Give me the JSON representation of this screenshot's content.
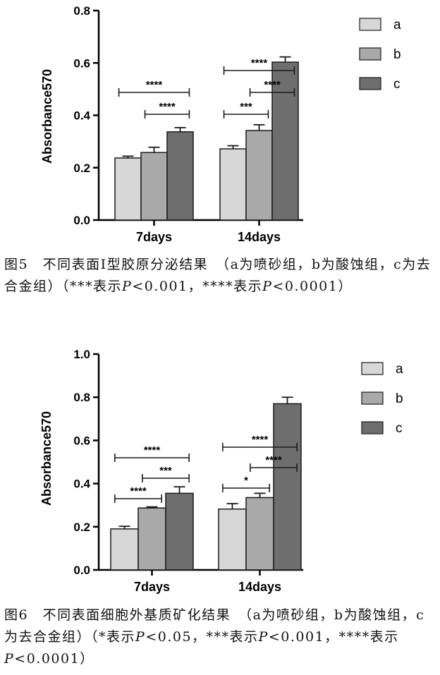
{
  "chart_data": [
    {
      "type": "bar",
      "categories": [
        "7days",
        "14days"
      ],
      "ylabel": "Absorbance570",
      "xlabel": "",
      "ylim": [
        0,
        0.8
      ],
      "yticks": [
        "0.0",
        "0.2",
        "0.4",
        "0.6",
        "0.8"
      ],
      "series": [
        {
          "name": "a",
          "values": [
            0.237,
            0.272
          ],
          "errors": [
            0.007,
            0.012
          ],
          "color": "#d7d7d7"
        },
        {
          "name": "b",
          "values": [
            0.258,
            0.342
          ],
          "errors": [
            0.02,
            0.022
          ],
          "color": "#a9a9a9"
        },
        {
          "name": "c",
          "values": [
            0.337,
            0.603
          ],
          "errors": [
            0.016,
            0.02
          ],
          "color": "#6e6e6e"
        }
      ],
      "significance": [
        {
          "group": 0,
          "from": 0,
          "to": 2,
          "label": "****",
          "level": 2
        },
        {
          "group": 0,
          "from": 1,
          "to": 2,
          "label": "****",
          "level": 1
        },
        {
          "group": 1,
          "from": 0,
          "to": 1,
          "label": "***",
          "level": 1
        },
        {
          "group": 1,
          "from": 0,
          "to": 2,
          "label": "****",
          "level": 3
        },
        {
          "group": 1,
          "from": 1,
          "to": 2,
          "label": "****",
          "level": 2
        }
      ],
      "legend_position": "top-right"
    },
    {
      "type": "bar",
      "categories": [
        "7days",
        "14days"
      ],
      "ylabel": "Absorbance570",
      "xlabel": "",
      "ylim": [
        0,
        1.0
      ],
      "yticks": [
        "0.0",
        "0.2",
        "0.4",
        "0.6",
        "0.8",
        "1.0"
      ],
      "series": [
        {
          "name": "a",
          "values": [
            0.19,
            0.282
          ],
          "errors": [
            0.012,
            0.025
          ],
          "color": "#d7d7d7"
        },
        {
          "name": "b",
          "values": [
            0.287,
            0.335
          ],
          "errors": [
            0.005,
            0.02
          ],
          "color": "#a9a9a9"
        },
        {
          "name": "c",
          "values": [
            0.355,
            0.77
          ],
          "errors": [
            0.03,
            0.03
          ],
          "color": "#6e6e6e"
        }
      ],
      "significance": [
        {
          "group": 0,
          "from": 0,
          "to": 1,
          "label": "****",
          "level": 1
        },
        {
          "group": 0,
          "from": 1,
          "to": 2,
          "label": "***",
          "level": 2
        },
        {
          "group": 0,
          "from": 0,
          "to": 2,
          "label": "****",
          "level": 3
        },
        {
          "group": 1,
          "from": 0,
          "to": 1,
          "label": "*",
          "level": 1
        },
        {
          "group": 1,
          "from": 1,
          "to": 2,
          "label": "****",
          "level": 2
        },
        {
          "group": 1,
          "from": 0,
          "to": 2,
          "label": "****",
          "level": 3
        }
      ],
      "legend_position": "top-right"
    }
  ],
  "captions": {
    "fig5": {
      "lead": "图5　不同表面Ⅰ型胶原分泌结果　（a为喷砂组，b为酸蚀组，c为去合金组）（***表示",
      "p1": "P",
      "mid": "<0.001，****表示",
      "p2": "P",
      "tail": "<0.0001）"
    },
    "fig6": {
      "lead": "图6　不同表面细胞外基质矿化结果　（a为喷砂组，b为酸蚀组，c为去合金组）（*表示",
      "p1": "P",
      "mid1": "<0.05，***表示",
      "p2": "P",
      "mid2": "<0.001，****表示",
      "p3": "P",
      "tail": "<0.0001）"
    }
  }
}
